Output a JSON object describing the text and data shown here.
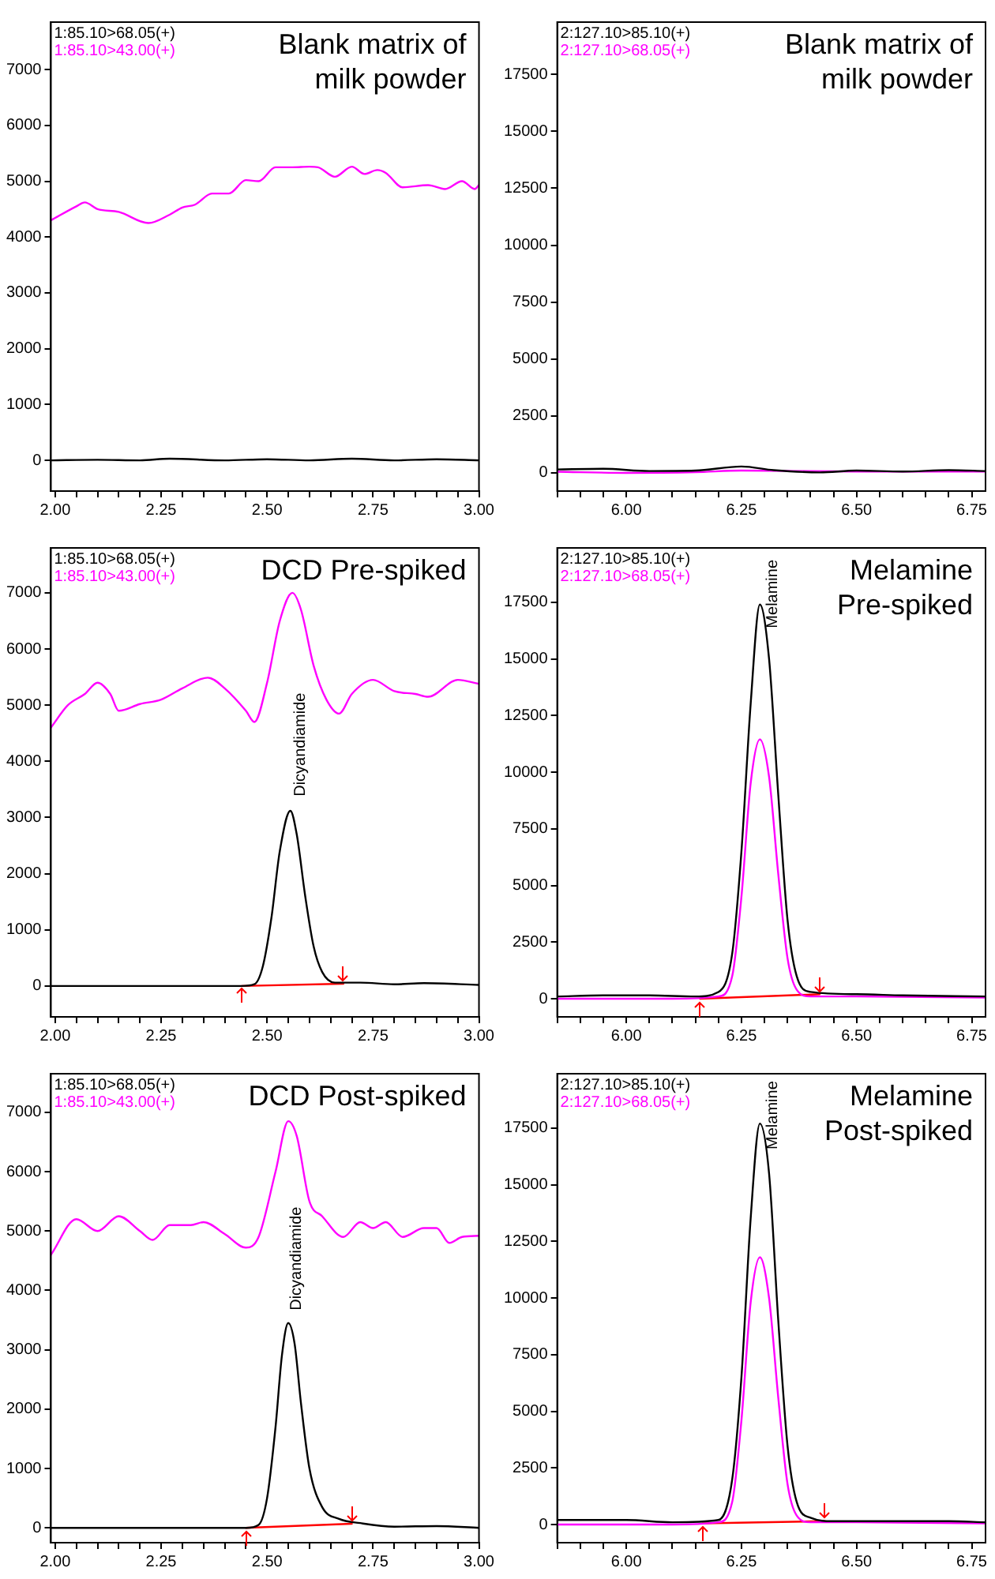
{
  "chart_data": [
    {
      "type": "line",
      "title": "Blank matrix of milk powder",
      "legend": "top left",
      "grid": false,
      "marker": "none",
      "xlim": [
        1.99,
        3.0
      ],
      "ylim": [
        -550,
        7850
      ],
      "xticks": [
        {
          "value": 2,
          "label": "2.00"
        },
        {
          "value": 2.05,
          "label": null
        },
        {
          "value": 2.1,
          "label": null
        },
        {
          "value": 2.15,
          "label": null
        },
        {
          "value": 2.2,
          "label": null
        },
        {
          "value": 2.25,
          "label": "2.25"
        },
        {
          "value": 2.3,
          "label": null
        },
        {
          "value": 2.35,
          "label": null
        },
        {
          "value": 2.4,
          "label": null
        },
        {
          "value": 2.45,
          "label": null
        },
        {
          "value": 2.5,
          "label": "2.50"
        },
        {
          "value": 2.55,
          "label": null
        },
        {
          "value": 2.6,
          "label": null
        },
        {
          "value": 2.65,
          "label": null
        },
        {
          "value": 2.7,
          "label": null
        },
        {
          "value": 2.75,
          "label": "2.75"
        },
        {
          "value": 2.8,
          "label": null
        },
        {
          "value": 2.85,
          "label": null
        },
        {
          "value": 2.9,
          "label": null
        },
        {
          "value": 2.95,
          "label": null
        },
        {
          "value": 3,
          "label": "3.00"
        }
      ],
      "yticks": [
        0,
        1000,
        2000,
        3000,
        4000,
        5000,
        6000,
        7000
      ],
      "series": [
        {
          "name": "1:85.10>68.05(+)",
          "color": "#000000",
          "x": [
            1.99,
            2.1,
            2.2,
            2.27,
            2.4,
            2.5,
            2.6,
            2.7,
            2.8,
            2.9,
            3.0
          ],
          "values": [
            0,
            10,
            0,
            30,
            0,
            20,
            0,
            30,
            0,
            20,
            0
          ]
        },
        {
          "name": "1:85.10>43.00(+)",
          "color": "#ff00ff",
          "x": [
            1.99,
            2.05,
            2.07,
            2.1,
            2.15,
            2.22,
            2.27,
            2.3,
            2.33,
            2.37,
            2.41,
            2.45,
            2.48,
            2.52,
            2.56,
            2.6,
            2.62,
            2.66,
            2.7,
            2.73,
            2.76,
            2.78,
            2.82,
            2.88,
            2.92,
            2.96,
            2.99,
            3.0
          ],
          "values": [
            4300,
            4550,
            4620,
            4500,
            4450,
            4250,
            4400,
            4530,
            4580,
            4780,
            4780,
            5020,
            5000,
            5250,
            5250,
            5260,
            5250,
            5080,
            5260,
            5130,
            5200,
            5150,
            4890,
            4930,
            4860,
            5000,
            4860,
            4930
          ]
        }
      ]
    },
    {
      "type": "line",
      "title": "Blank matrix of milk powder",
      "legend": "top left",
      "grid": false,
      "marker": "none",
      "xlim": [
        5.85,
        6.78
      ],
      "ylim": [
        -800,
        19800
      ],
      "xticks": [
        {
          "value": 5.85,
          "label": null
        },
        {
          "value": 5.9,
          "label": null
        },
        {
          "value": 5.95,
          "label": null
        },
        {
          "value": 6,
          "label": "6.00"
        },
        {
          "value": 6.05,
          "label": null
        },
        {
          "value": 6.1,
          "label": null
        },
        {
          "value": 6.15,
          "label": null
        },
        {
          "value": 6.2,
          "label": null
        },
        {
          "value": 6.25,
          "label": "6.25"
        },
        {
          "value": 6.3,
          "label": null
        },
        {
          "value": 6.35,
          "label": null
        },
        {
          "value": 6.4,
          "label": null
        },
        {
          "value": 6.45,
          "label": null
        },
        {
          "value": 6.5,
          "label": "6.50"
        },
        {
          "value": 6.55,
          "label": null
        },
        {
          "value": 6.6,
          "label": null
        },
        {
          "value": 6.65,
          "label": null
        },
        {
          "value": 6.7,
          "label": null
        },
        {
          "value": 6.75,
          "label": "6.75"
        }
      ],
      "yticks": [
        0,
        2500,
        5000,
        7500,
        10000,
        12500,
        15000,
        17500
      ],
      "series": [
        {
          "name": "2:127.10>85.10(+)",
          "color": "#000000",
          "x": [
            5.85,
            5.95,
            6.05,
            6.15,
            6.25,
            6.32,
            6.42,
            6.5,
            6.6,
            6.7,
            6.78
          ],
          "values": [
            150,
            180,
            80,
            100,
            280,
            120,
            20,
            100,
            60,
            120,
            80
          ]
        },
        {
          "name": "2:127.10>68.05(+)",
          "color": "#ff00ff",
          "x": [
            5.85,
            6.0,
            6.15,
            6.25,
            6.5,
            6.78
          ],
          "values": [
            50,
            0,
            30,
            100,
            60,
            60
          ]
        }
      ]
    },
    {
      "type": "line",
      "title": "DCD Pre-spiked",
      "legend": "top left",
      "grid": false,
      "marker": "none",
      "xlim": [
        1.99,
        3.0
      ],
      "ylim": [
        -550,
        7800
      ],
      "xticks": [
        {
          "value": 2,
          "label": "2.00"
        },
        {
          "value": 2.05,
          "label": null
        },
        {
          "value": 2.1,
          "label": null
        },
        {
          "value": 2.15,
          "label": null
        },
        {
          "value": 2.2,
          "label": null
        },
        {
          "value": 2.25,
          "label": "2.25"
        },
        {
          "value": 2.3,
          "label": null
        },
        {
          "value": 2.35,
          "label": null
        },
        {
          "value": 2.4,
          "label": null
        },
        {
          "value": 2.45,
          "label": null
        },
        {
          "value": 2.5,
          "label": "2.50"
        },
        {
          "value": 2.55,
          "label": null
        },
        {
          "value": 2.6,
          "label": null
        },
        {
          "value": 2.65,
          "label": null
        },
        {
          "value": 2.7,
          "label": null
        },
        {
          "value": 2.75,
          "label": "2.75"
        },
        {
          "value": 2.8,
          "label": null
        },
        {
          "value": 2.85,
          "label": null
        },
        {
          "value": 2.9,
          "label": null
        },
        {
          "value": 2.95,
          "label": null
        },
        {
          "value": 3,
          "label": "3.00"
        }
      ],
      "yticks": [
        0,
        1000,
        2000,
        3000,
        4000,
        5000,
        6000,
        7000
      ],
      "annotations": [
        {
          "text": "Dicyandiamide",
          "x": 2.56,
          "y": 3150
        }
      ],
      "series": [
        {
          "name": "1:85.10>68.05(+)",
          "color": "#000000",
          "x": [
            1.99,
            2.3,
            2.44,
            2.47,
            2.49,
            2.51,
            2.53,
            2.555,
            2.57,
            2.59,
            2.61,
            2.63,
            2.66,
            2.72,
            2.8,
            2.87,
            3.0
          ],
          "values": [
            0,
            0,
            0,
            30,
            350,
            1200,
            2400,
            3120,
            2700,
            1600,
            700,
            250,
            60,
            60,
            30,
            50,
            20
          ]
        },
        {
          "name": "1:85.10>43.00(+)",
          "color": "#ff00ff",
          "x": [
            1.99,
            2.03,
            2.07,
            2.1,
            2.13,
            2.15,
            2.2,
            2.25,
            2.3,
            2.36,
            2.4,
            2.45,
            2.47,
            2.5,
            2.53,
            2.56,
            2.58,
            2.61,
            2.64,
            2.67,
            2.7,
            2.75,
            2.8,
            2.85,
            2.88,
            2.95,
            3.0
          ],
          "values": [
            4600,
            5000,
            5200,
            5400,
            5200,
            4900,
            5020,
            5100,
            5300,
            5490,
            5300,
            4900,
            4700,
            5400,
            6500,
            7000,
            6700,
            5700,
            5100,
            4850,
            5200,
            5450,
            5250,
            5200,
            5150,
            5450,
            5380
          ]
        },
        {
          "color": "#ff0000",
          "x": [
            2.44,
            2.68
          ],
          "values": [
            0,
            40
          ]
        }
      ]
    },
    {
      "type": "line",
      "title": "Melamine Pre-spiked",
      "legend": "top left",
      "grid": false,
      "marker": "none",
      "xlim": [
        5.85,
        6.78
      ],
      "ylim": [
        -800,
        19900
      ],
      "xticks": [
        {
          "value": 5.85,
          "label": null
        },
        {
          "value": 5.9,
          "label": null
        },
        {
          "value": 5.95,
          "label": null
        },
        {
          "value": 6,
          "label": "6.00"
        },
        {
          "value": 6.05,
          "label": null
        },
        {
          "value": 6.1,
          "label": null
        },
        {
          "value": 6.15,
          "label": null
        },
        {
          "value": 6.2,
          "label": null
        },
        {
          "value": 6.25,
          "label": "6.25"
        },
        {
          "value": 6.3,
          "label": null
        },
        {
          "value": 6.35,
          "label": null
        },
        {
          "value": 6.4,
          "label": null
        },
        {
          "value": 6.45,
          "label": null
        },
        {
          "value": 6.5,
          "label": "6.50"
        },
        {
          "value": 6.55,
          "label": null
        },
        {
          "value": 6.6,
          "label": null
        },
        {
          "value": 6.65,
          "label": null
        },
        {
          "value": 6.7,
          "label": null
        },
        {
          "value": 6.75,
          "label": "6.75"
        }
      ],
      "yticks": [
        0,
        2500,
        5000,
        7500,
        10000,
        12500,
        15000,
        17500
      ],
      "annotations": [
        {
          "text": "Melamine",
          "x": 6.3,
          "y": 15800
        }
      ],
      "series": [
        {
          "name": "2:127.10>85.10(+)",
          "color": "#000000",
          "x": [
            5.85,
            5.95,
            6.05,
            6.15,
            6.2,
            6.23,
            6.25,
            6.27,
            6.29,
            6.31,
            6.33,
            6.35,
            6.37,
            6.4,
            6.5,
            6.6,
            6.78
          ],
          "values": [
            100,
            150,
            150,
            100,
            300,
            2000,
            6500,
            13000,
            17400,
            15000,
            9000,
            3500,
            1000,
            300,
            200,
            150,
            100
          ]
        },
        {
          "name": "2:127.10>68.05(+)",
          "color": "#ff00ff",
          "x": [
            5.85,
            6.1,
            6.2,
            6.23,
            6.25,
            6.27,
            6.29,
            6.31,
            6.33,
            6.35,
            6.37,
            6.4,
            6.5,
            6.78
          ],
          "values": [
            0,
            0,
            100,
            1000,
            4500,
            9500,
            11450,
            9800,
            5500,
            1800,
            400,
            100,
            100,
            50
          ]
        },
        {
          "color": "#ff0000",
          "x": [
            6.16,
            6.42
          ],
          "values": [
            0,
            200
          ]
        }
      ]
    },
    {
      "type": "line",
      "title": "DCD Post-spiked",
      "legend": "top left",
      "grid": false,
      "marker": "none",
      "xlim": [
        1.99,
        3.0
      ],
      "ylim": [
        -250,
        7650
      ],
      "xticks": [
        {
          "value": 2,
          "label": "2.00"
        },
        {
          "value": 2.05,
          "label": null
        },
        {
          "value": 2.1,
          "label": null
        },
        {
          "value": 2.15,
          "label": null
        },
        {
          "value": 2.2,
          "label": null
        },
        {
          "value": 2.25,
          "label": "2.25"
        },
        {
          "value": 2.3,
          "label": null
        },
        {
          "value": 2.35,
          "label": null
        },
        {
          "value": 2.4,
          "label": null
        },
        {
          "value": 2.45,
          "label": null
        },
        {
          "value": 2.5,
          "label": "2.50"
        },
        {
          "value": 2.55,
          "label": null
        },
        {
          "value": 2.6,
          "label": null
        },
        {
          "value": 2.65,
          "label": null
        },
        {
          "value": 2.7,
          "label": null
        },
        {
          "value": 2.75,
          "label": "2.75"
        },
        {
          "value": 2.8,
          "label": null
        },
        {
          "value": 2.85,
          "label": null
        },
        {
          "value": 2.9,
          "label": null
        },
        {
          "value": 2.95,
          "label": null
        },
        {
          "value": 3,
          "label": "3.00"
        }
      ],
      "yticks": [
        0,
        1000,
        2000,
        3000,
        4000,
        5000,
        6000,
        7000
      ],
      "annotations": [
        {
          "text": "Dicyandiamide",
          "x": 2.55,
          "y": 3450
        }
      ],
      "series": [
        {
          "name": "1:85.10>68.05(+)",
          "color": "#000000",
          "x": [
            1.99,
            2.4,
            2.45,
            2.48,
            2.5,
            2.52,
            2.535,
            2.55,
            2.565,
            2.58,
            2.6,
            2.63,
            2.67,
            2.72,
            2.8,
            2.9,
            3.0
          ],
          "values": [
            0,
            0,
            0,
            50,
            500,
            1700,
            2900,
            3450,
            3100,
            2100,
            1000,
            350,
            150,
            80,
            20,
            30,
            0
          ]
        },
        {
          "name": "1:85.10>43.00(+)",
          "color": "#ff00ff",
          "x": [
            1.99,
            2.05,
            2.1,
            2.15,
            2.2,
            2.23,
            2.27,
            2.32,
            2.35,
            2.4,
            2.45,
            2.48,
            2.52,
            2.55,
            2.57,
            2.6,
            2.63,
            2.68,
            2.72,
            2.75,
            2.78,
            2.82,
            2.87,
            2.9,
            2.93,
            2.96,
            3.0
          ],
          "values": [
            4600,
            5200,
            5000,
            5250,
            5000,
            4850,
            5100,
            5100,
            5150,
            4950,
            4720,
            4900,
            6000,
            6850,
            6600,
            5500,
            5250,
            4900,
            5150,
            5050,
            5150,
            4900,
            5050,
            5050,
            4800,
            4900,
            4920
          ]
        },
        {
          "color": "#ff0000",
          "x": [
            2.45,
            2.7
          ],
          "values": [
            0,
            70
          ]
        }
      ]
    },
    {
      "type": "line",
      "title": "Melamine Post-spiked",
      "legend": "top left",
      "grid": false,
      "marker": "none",
      "xlim": [
        5.85,
        6.78
      ],
      "ylim": [
        -800,
        19900
      ],
      "xticks": [
        {
          "value": 5.85,
          "label": null
        },
        {
          "value": 5.9,
          "label": null
        },
        {
          "value": 5.95,
          "label": null
        },
        {
          "value": 6,
          "label": "6.00"
        },
        {
          "value": 6.05,
          "label": null
        },
        {
          "value": 6.1,
          "label": null
        },
        {
          "value": 6.15,
          "label": null
        },
        {
          "value": 6.2,
          "label": null
        },
        {
          "value": 6.25,
          "label": "6.25"
        },
        {
          "value": 6.3,
          "label": null
        },
        {
          "value": 6.35,
          "label": null
        },
        {
          "value": 6.4,
          "label": null
        },
        {
          "value": 6.45,
          "label": null
        },
        {
          "value": 6.5,
          "label": "6.50"
        },
        {
          "value": 6.55,
          "label": null
        },
        {
          "value": 6.6,
          "label": null
        },
        {
          "value": 6.65,
          "label": null
        },
        {
          "value": 6.7,
          "label": null
        },
        {
          "value": 6.75,
          "label": "6.75"
        }
      ],
      "yticks": [
        0,
        2500,
        5000,
        7500,
        10000,
        12500,
        15000,
        17500
      ],
      "annotations": [
        {
          "text": "Melamine",
          "x": 6.3,
          "y": 16000
        }
      ],
      "series": [
        {
          "name": "2:127.10>85.10(+)",
          "color": "#000000",
          "x": [
            5.85,
            6.0,
            6.1,
            6.2,
            6.23,
            6.25,
            6.27,
            6.29,
            6.31,
            6.33,
            6.35,
            6.37,
            6.4,
            6.45,
            6.55,
            6.7,
            6.78
          ],
          "values": [
            200,
            200,
            100,
            200,
            2000,
            6500,
            13500,
            17700,
            15500,
            9000,
            3500,
            1000,
            300,
            150,
            150,
            150,
            100
          ]
        },
        {
          "name": "2:127.10>68.05(+)",
          "color": "#ff00ff",
          "x": [
            5.85,
            6.1,
            6.2,
            6.23,
            6.25,
            6.27,
            6.29,
            6.31,
            6.33,
            6.35,
            6.37,
            6.4,
            6.5,
            6.78
          ],
          "values": [
            0,
            0,
            100,
            1000,
            4600,
            9800,
            11800,
            10000,
            5600,
            1800,
            400,
            100,
            100,
            50
          ]
        },
        {
          "color": "#ff0000",
          "x": [
            6.165,
            6.43
          ],
          "values": [
            50,
            150
          ]
        }
      ]
    }
  ]
}
